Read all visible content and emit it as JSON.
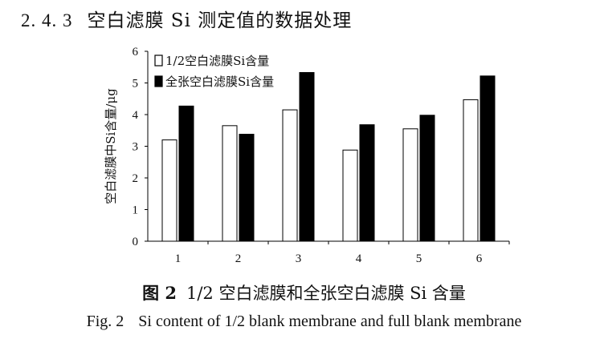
{
  "section": {
    "number": "2. 4. 3",
    "title": "空白滤膜 Si 测定值的数据处理"
  },
  "caption_zh": {
    "label": "图 2",
    "text": "1/2 空白滤膜和全张空白滤膜 Si 含量"
  },
  "caption_en": {
    "label": "Fig. 2",
    "text": "Si content of 1/2 blank membrane and full blank membrane"
  },
  "chart_data": {
    "type": "bar",
    "title": "",
    "xlabel": "",
    "ylabel": "空白滤膜中Si含量/μg",
    "categories": [
      "1",
      "2",
      "3",
      "4",
      "5",
      "6"
    ],
    "ylim": [
      0,
      6
    ],
    "yticks": [
      0,
      1,
      2,
      3,
      4,
      5,
      6
    ],
    "grid": false,
    "legend_position": "top-left",
    "series": [
      {
        "name": "1/2空白滤膜Si含量",
        "fill": "#ffffff",
        "stroke": "#000000",
        "values": [
          3.2,
          3.65,
          4.15,
          2.88,
          3.55,
          4.47
        ]
      },
      {
        "name": "全张空白滤膜Si含量",
        "fill": "#000000",
        "stroke": "#000000",
        "values": [
          4.27,
          3.38,
          5.33,
          3.68,
          3.98,
          5.22
        ]
      }
    ]
  }
}
